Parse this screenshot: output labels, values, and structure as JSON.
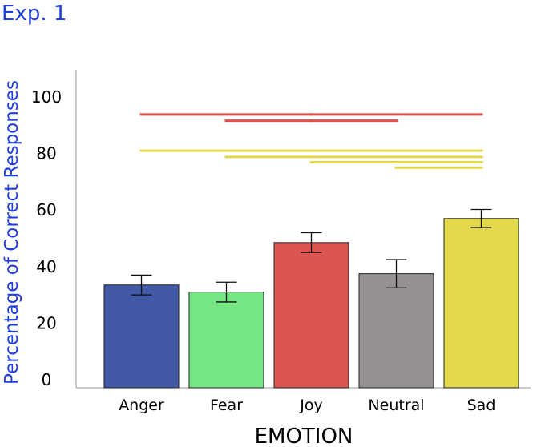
{
  "panel_label": "Exp. 1",
  "chart_data": {
    "type": "bar",
    "xlabel": "EMOTION",
    "ylabel": "Percentage of Correct Responses",
    "ylim": [
      0,
      100
    ],
    "yticks": [
      0,
      20,
      40,
      60,
      80,
      100
    ],
    "grid": false,
    "categories": [
      "Anger",
      "Fear",
      "Joy",
      "Neutral",
      "Sad"
    ],
    "values": [
      33.5,
      31,
      48.5,
      37.5,
      57
    ],
    "errors": [
      3.5,
      3.5,
      3.5,
      5,
      3.2
    ],
    "colors": [
      "#4159a6",
      "#75e683",
      "#dd5550",
      "#959190",
      "#e3d84a"
    ],
    "significance_lines": [
      {
        "from": "Anger",
        "to": "Joy",
        "y": 93.8,
        "color": "#e0504a"
      },
      {
        "from": "Fear",
        "to": "Joy",
        "y": 91.6,
        "color": "#e0504a"
      },
      {
        "from": "Joy",
        "to": "Sad",
        "y": 93.8,
        "color": "#e0504a"
      },
      {
        "from": "Joy",
        "to": "Neutral",
        "y": 91.6,
        "color": "#e0504a"
      },
      {
        "from": "Anger",
        "to": "Sad",
        "y": 81.0,
        "color": "#e3d84a"
      },
      {
        "from": "Fear",
        "to": "Sad",
        "y": 78.8,
        "color": "#e3d84a"
      },
      {
        "from": "Joy",
        "to": "Sad",
        "y": 76.9,
        "color": "#e3d84a"
      },
      {
        "from": "Neutral",
        "to": "Sad",
        "y": 75.0,
        "color": "#e3d84a"
      }
    ]
  }
}
